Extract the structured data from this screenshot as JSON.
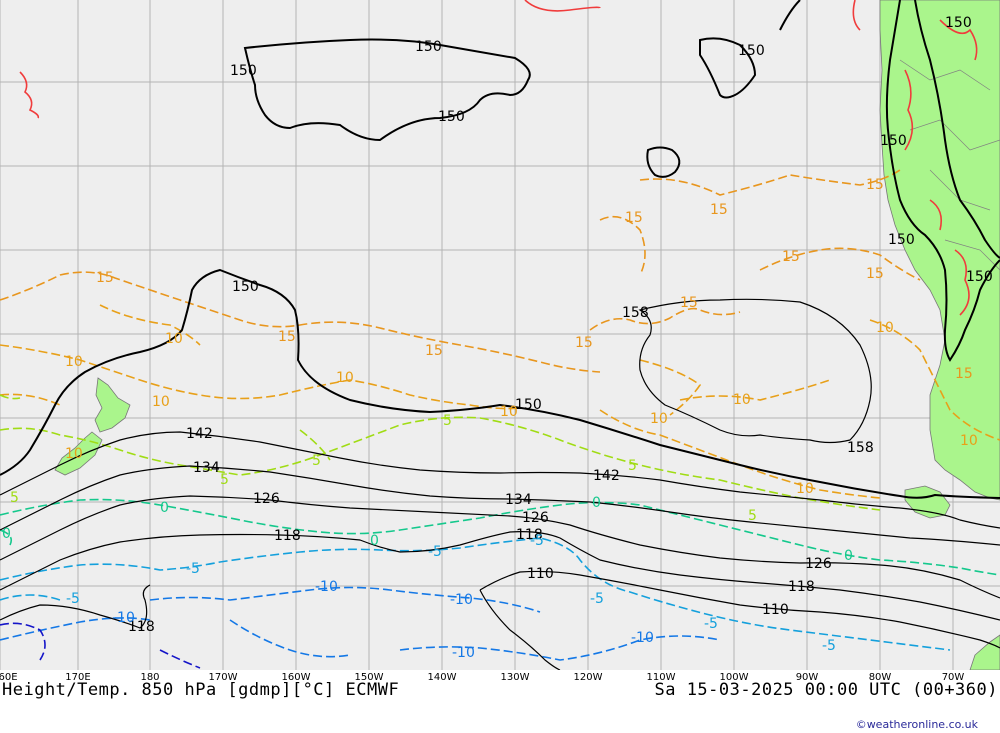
{
  "map": {
    "caption_left": "Height/Temp. 850 hPa [gdmp][°C] ECMWF",
    "caption_right": "Sa 15-03-2025 00:00 UTC (00+360)",
    "credit": "©weatheronline.co.uk",
    "longitude_labels": [
      "60E",
      "170E",
      "180",
      "170W",
      "160W",
      "150W",
      "140W",
      "130W",
      "120W",
      "110W",
      "100W",
      "90W",
      "80W",
      "70W"
    ],
    "colors": {
      "sea": "#eeeeee",
      "land": "#aaf58c",
      "grid": "#b4b4b4",
      "height_contour": "#000000",
      "temp_15": "#e8961e",
      "temp_10": "#e8a019",
      "temp_5": "#a0dc14",
      "temp_0": "#14c88c",
      "temp_minus5": "#14a0dc",
      "temp_minus10": "#1478e6",
      "temp_minus15": "#1414c8",
      "temp_20": "#f03c3c"
    },
    "height_labels": {
      "h150_a": "150",
      "h150_b": "150",
      "h150_c": "150",
      "h150_d": "150",
      "h150_e": "150",
      "h150_f": "150",
      "h150_g": "150",
      "h150_h": "150",
      "h150_i": "150",
      "h158_a": "158",
      "h158_b": "158",
      "h142_a": "142",
      "h142_b": "142",
      "h134_a": "134",
      "h134_b": "134",
      "h126_a": "126",
      "h126_b": "126",
      "h126_c": "126",
      "h118_a": "118",
      "h118_b": "118",
      "h118_c": "118",
      "h118_d": "118",
      "h110_a": "110",
      "h110_b": "110"
    },
    "temp_labels": {
      "t15_a": "15",
      "t15_b": "15",
      "t15_c": "15",
      "t15_d": "15",
      "t15_e": "15",
      "t15_f": "15",
      "t15_g": "15",
      "t15_h": "15",
      "t15_i": "15",
      "t15_j": "15",
      "t15_k": "15",
      "t10_a": "10",
      "t10_b": "10",
      "t10_c": "10",
      "t10_d": "10",
      "t10_e": "10",
      "t10_f": "10",
      "t10_g": "10",
      "t10_h": "10",
      "t10_i": "10",
      "t10_j": "10",
      "t10_k": "10",
      "t5_a": "5",
      "t5_b": "5",
      "t5_c": "5",
      "t5_d": "5",
      "t5_e": "5",
      "t5_f": "5",
      "t0_a": "0",
      "t0_b": "0",
      "t0_c": "0",
      "t0_d": "0",
      "t0_e": "0",
      "tm5_a": "-5",
      "tm5_b": "-5",
      "tm5_c": "-5",
      "tm5_d": "-5",
      "tm5_e": "-5",
      "tm5_f": "-5",
      "tm5_g": "-5",
      "tm10_a": "-10",
      "tm10_b": "-10",
      "tm10_c": "-10",
      "tm10_d": "-10",
      "tm10_e": "-10"
    }
  }
}
